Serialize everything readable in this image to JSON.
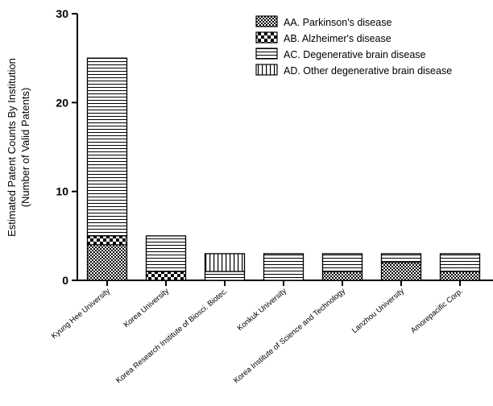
{
  "chart_data": {
    "type": "bar",
    "stacked": true,
    "title": "",
    "xlabel": "",
    "ylabel": [
      "Estimated Patent Counts By Institution",
      "(Number of Valid Patents)"
    ],
    "ylim": [
      0,
      30
    ],
    "yticks": [
      0,
      10,
      20,
      30
    ],
    "grid": false,
    "legend_position": "top-right",
    "categories": [
      "Kyung Hee University",
      "Korea University",
      "Korea Research Institute of Biosci. Biotec.",
      "Konkuk University",
      "Korea Institute of Science and Technology",
      "Lanzhou University",
      "Amorepacific Corp."
    ],
    "series": [
      {
        "name": "AA. Parkinson's disease",
        "pattern": "checker-fine",
        "values": [
          4,
          0,
          0,
          0,
          1,
          2,
          1
        ]
      },
      {
        "name": "AB. Alzheimer's disease",
        "pattern": "checker-coarse",
        "values": [
          1,
          1,
          0,
          0,
          0,
          0,
          0
        ]
      },
      {
        "name": "AC. Degenerative brain disease",
        "pattern": "horizontal-lines",
        "values": [
          20,
          4,
          1,
          3,
          2,
          1,
          2
        ]
      },
      {
        "name": "AD. Other degenerative brain disease",
        "pattern": "vertical-lines",
        "values": [
          0,
          0,
          2,
          0,
          0,
          0,
          0
        ]
      }
    ]
  }
}
